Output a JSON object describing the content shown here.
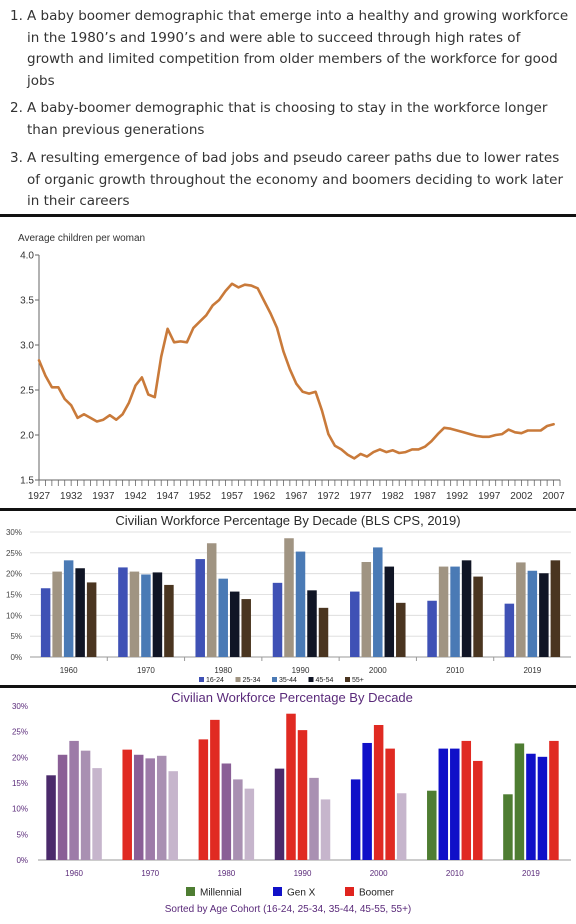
{
  "list": {
    "items": [
      {
        "number": "1.",
        "text": "A baby boomer demographic that emerge into a healthy and growing workforce in the 1980’s and 1990’s and were able to succeed through high rates of growth and limited competition from older members of the workforce for good jobs"
      },
      {
        "number": "2.",
        "text": "A baby-boomer demographic that is choosing to stay in the workforce longer than previous generations"
      },
      {
        "number": "3.",
        "text": "A resulting emergence of bad jobs and pseudo career paths due to lower rates of organic growth throughout the economy and boomers deciding to work later in their careers"
      }
    ]
  },
  "chart_data": [
    {
      "type": "line",
      "title": "",
      "ylabel": "Average children per woman",
      "xlabel": "",
      "ylim": [
        1.5,
        4.0
      ],
      "yticks": [
        "1.5",
        "2.0",
        "2.5",
        "3.0",
        "3.5",
        "4.0"
      ],
      "xlim": [
        1927,
        2008
      ],
      "xticks": [
        "1927",
        "1932",
        "1937",
        "1942",
        "1947",
        "1952",
        "1957",
        "1962",
        "1967",
        "1972",
        "1977",
        "1982",
        "1987",
        "1992",
        "1997",
        "2002",
        "2007"
      ],
      "grid": false,
      "line_color": "#c97a3a",
      "x": [
        1927,
        1928,
        1929,
        1930,
        1931,
        1932,
        1933,
        1934,
        1935,
        1936,
        1937,
        1938,
        1939,
        1940,
        1941,
        1942,
        1943,
        1944,
        1945,
        1946,
        1947,
        1948,
        1949,
        1950,
        1951,
        1952,
        1953,
        1954,
        1955,
        1956,
        1957,
        1958,
        1959,
        1960,
        1961,
        1962,
        1963,
        1964,
        1965,
        1966,
        1967,
        1968,
        1969,
        1970,
        1971,
        1972,
        1973,
        1974,
        1975,
        1976,
        1977,
        1978,
        1979,
        1980,
        1981,
        1982,
        1983,
        1984,
        1985,
        1986,
        1987,
        1988,
        1989,
        1990,
        1991,
        1992,
        1993,
        1994,
        1995,
        1996,
        1997,
        1998,
        1999,
        2000,
        2001,
        2002,
        2003,
        2004,
        2005,
        2006,
        2007
      ],
      "y": [
        2.83,
        2.66,
        2.53,
        2.53,
        2.4,
        2.33,
        2.19,
        2.23,
        2.19,
        2.15,
        2.17,
        2.22,
        2.17,
        2.23,
        2.36,
        2.55,
        2.64,
        2.45,
        2.42,
        2.87,
        3.18,
        3.03,
        3.04,
        3.03,
        3.19,
        3.26,
        3.33,
        3.44,
        3.5,
        3.6,
        3.68,
        3.64,
        3.67,
        3.66,
        3.63,
        3.49,
        3.35,
        3.19,
        2.93,
        2.73,
        2.57,
        2.48,
        2.46,
        2.48,
        2.27,
        2.01,
        1.88,
        1.84,
        1.78,
        1.74,
        1.79,
        1.76,
        1.81,
        1.84,
        1.81,
        1.83,
        1.8,
        1.81,
        1.84,
        1.84,
        1.87,
        1.93,
        2.01,
        2.08,
        2.07,
        2.05,
        2.03,
        2.01,
        1.99,
        1.98,
        1.98,
        2.0,
        2.01,
        2.06,
        2.03,
        2.02,
        2.05,
        2.05,
        2.05,
        2.1,
        2.12
      ]
    },
    {
      "type": "bar",
      "title": "Civilian Workforce Percentage By Decade  (BLS CPS, 2019)",
      "xlabel": "",
      "ylabel": "",
      "ylim": [
        0,
        30
      ],
      "yticks": [
        "0%",
        "5%",
        "10%",
        "15%",
        "20%",
        "25%",
        "30%"
      ],
      "grid": true,
      "legend_position": "bottom-right",
      "categories": [
        "1960",
        "1970",
        "1980",
        "1990",
        "2000",
        "2010",
        "2019"
      ],
      "series": [
        {
          "name": "16-24",
          "color": "#3f51b5",
          "values": [
            16.5,
            21.5,
            23.5,
            17.8,
            15.7,
            13.5,
            12.8
          ]
        },
        {
          "name": "25-34",
          "color": "#a09482",
          "values": [
            20.5,
            20.5,
            27.3,
            28.5,
            22.8,
            21.7,
            22.7
          ]
        },
        {
          "name": "35-44",
          "color": "#4a7ab5",
          "values": [
            23.2,
            19.8,
            18.8,
            25.3,
            26.3,
            21.7,
            20.7
          ]
        },
        {
          "name": "45-54",
          "color": "#101525",
          "values": [
            21.3,
            20.3,
            15.7,
            16.0,
            21.7,
            23.2,
            20.1
          ]
        },
        {
          "name": "55+",
          "color": "#4a3520",
          "values": [
            17.9,
            17.3,
            13.9,
            11.8,
            13.0,
            19.3,
            23.2
          ]
        }
      ]
    },
    {
      "type": "bar",
      "title": "Civilian Workforce Percentage By Decade",
      "subtitle": "Sorted by Age Cohort (16-24, 25-34, 35-44, 45-55, 55+)",
      "xlabel": "",
      "ylabel": "",
      "ylim": [
        0,
        30
      ],
      "yticks": [
        "0%",
        "5%",
        "10%",
        "15%",
        "20%",
        "25%",
        "30%"
      ],
      "grid": false,
      "legend_position": "bottom",
      "legend": [
        {
          "name": "Millennial",
          "color": "#4e7d32"
        },
        {
          "name": "Gen X",
          "color": "#1010c8"
        },
        {
          "name": "Boomer",
          "color": "#e0241e"
        }
      ],
      "categories": [
        "1960",
        "1970",
        "1980",
        "1990",
        "2000",
        "2010",
        "2019"
      ],
      "values": [
        [
          16.5,
          20.5,
          23.2,
          21.3,
          17.9
        ],
        [
          21.5,
          20.5,
          19.8,
          20.3,
          17.3
        ],
        [
          23.5,
          27.3,
          18.8,
          15.7,
          13.9
        ],
        [
          17.8,
          28.5,
          25.3,
          16.0,
          11.8
        ],
        [
          15.7,
          22.8,
          26.3,
          21.7,
          13.0
        ],
        [
          13.5,
          21.7,
          21.7,
          23.2,
          19.3
        ],
        [
          12.8,
          22.7,
          20.7,
          20.1,
          23.2
        ]
      ],
      "colors": [
        [
          "#4b2a6b",
          "#8a5f96",
          "#9d7ba8",
          "#a990b2",
          "#c6b5cc"
        ],
        [
          "#e02a22",
          "#8a5f96",
          "#9d7ba8",
          "#a990b2",
          "#c6b5cc"
        ],
        [
          "#e02a22",
          "#e02a22",
          "#8a5f96",
          "#a990b2",
          "#c6b5cc"
        ],
        [
          "#4b2a6b",
          "#e02a22",
          "#e02a22",
          "#a990b2",
          "#c6b5cc"
        ],
        [
          "#1010c8",
          "#1010c8",
          "#e02a22",
          "#e02a22",
          "#c6b5cc"
        ],
        [
          "#4e7d32",
          "#1010c8",
          "#1010c8",
          "#e02a22",
          "#e02a22"
        ],
        [
          "#4e7d32",
          "#4e7d32",
          "#1010c8",
          "#1010c8",
          "#e02a22"
        ]
      ]
    }
  ]
}
